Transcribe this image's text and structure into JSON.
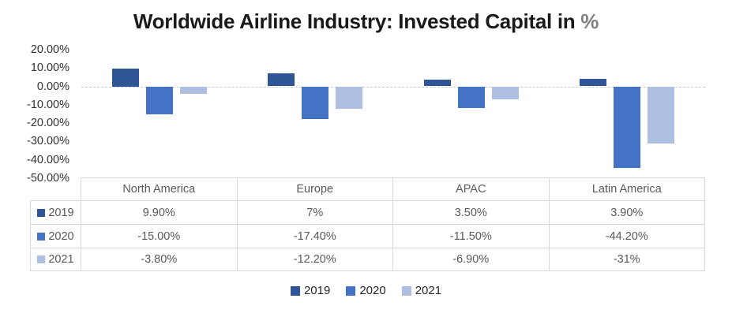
{
  "title": {
    "main": "Worldwide Airline Industry: Invested Capital in",
    "suffix": " %"
  },
  "colors": {
    "series_2019": "#2F5597",
    "series_2020": "#4472C4",
    "series_2021": "#AFBFE2",
    "title_text": "#1A1A1A",
    "title_suffix": "#808080",
    "axis_text": "#333333",
    "table_text": "#595959",
    "table_border": "#D9D9D9",
    "zero_line": "#C9C9C9",
    "background": "#FFFFFF"
  },
  "chart_data": {
    "type": "bar",
    "title": "Worldwide Airline Industry: Invested Capital in %",
    "categories": [
      "North America",
      "Europe",
      "APAC",
      "Latin America"
    ],
    "series": [
      {
        "name": "2019",
        "color": "#2F5597",
        "values": [
          9.9,
          7,
          3.5,
          3.9
        ],
        "labels": [
          "9.90%",
          "7%",
          "3.50%",
          "3.90%"
        ]
      },
      {
        "name": "2020",
        "color": "#4472C4",
        "values": [
          -15,
          -17.4,
          -11.5,
          -44.2
        ],
        "labels": [
          "-15.00%",
          "-17.40%",
          "-11.50%",
          "-44.20%"
        ]
      },
      {
        "name": "2021",
        "color": "#AFBFE2",
        "values": [
          -3.8,
          -12.2,
          -6.9,
          -31
        ],
        "labels": [
          "-3.80%",
          "-12.20%",
          "-6.90%",
          "-31%"
        ]
      }
    ],
    "y_axis": {
      "tick_labels": [
        "20.00%",
        "10.00%",
        "0.00%",
        "-10.00%",
        "-20.00%",
        "-30.00%",
        "-40.00%",
        "-50.00%"
      ],
      "tick_values": [
        20,
        10,
        0,
        -10,
        -20,
        -30,
        -40,
        -50
      ],
      "max": 20,
      "min": -50
    },
    "legend": [
      "2019",
      "2020",
      "2021"
    ],
    "legend_position": "bottom",
    "grid": false,
    "data_table": true
  }
}
